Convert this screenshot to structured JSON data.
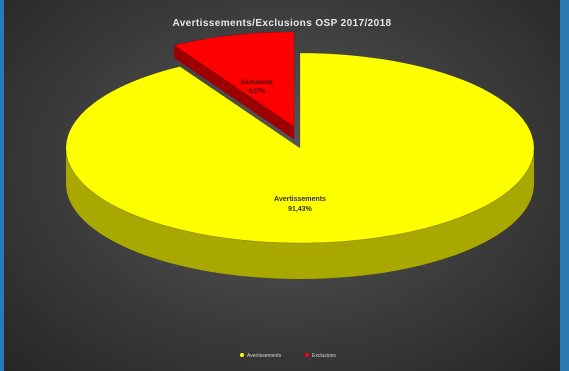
{
  "chart_data": {
    "type": "pie",
    "title": "Avertissements/Exclusions OSP 2017/2018",
    "slices": [
      {
        "name": "Avertissements",
        "value": 91.43,
        "value_label": "91,43%",
        "color": "#ffff00",
        "side_color": "#a8a800"
      },
      {
        "name": "Exclusions",
        "value": 8.57,
        "value_label": "8,57%",
        "color": "#ff0000",
        "side_color": "#9c0000",
        "exploded": true
      }
    ],
    "legend": {
      "position": "bottom",
      "items": [
        "Avertissements",
        "Exclusions"
      ]
    },
    "three_d": true
  }
}
